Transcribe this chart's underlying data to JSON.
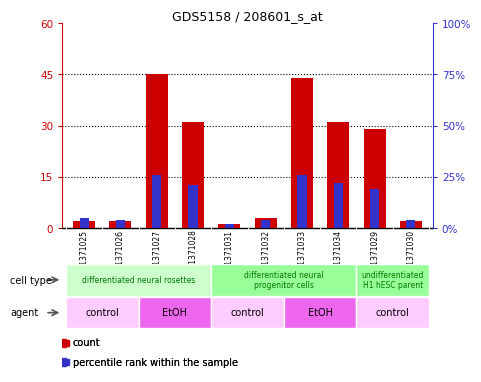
{
  "title": "GDS5158 / 208601_s_at",
  "samples": [
    "GSM1371025",
    "GSM1371026",
    "GSM1371027",
    "GSM1371028",
    "GSM1371031",
    "GSM1371032",
    "GSM1371033",
    "GSM1371034",
    "GSM1371029",
    "GSM1371030"
  ],
  "counts": [
    2,
    2,
    45,
    31,
    1,
    3,
    44,
    31,
    29,
    2
  ],
  "percentile_ranks": [
    5,
    4,
    26,
    21,
    2,
    4,
    26,
    22,
    19,
    4
  ],
  "ylim_left": [
    0,
    60
  ],
  "ylim_right": [
    0,
    100
  ],
  "yticks_left": [
    0,
    15,
    30,
    45,
    60
  ],
  "ytick_labels_left": [
    "0",
    "15",
    "30",
    "45",
    "60"
  ],
  "yticks_right": [
    0,
    25,
    50,
    75,
    100
  ],
  "ytick_labels_right": [
    "0%",
    "25%",
    "50%",
    "75%",
    "100%"
  ],
  "bar_color": "#cc0000",
  "percentile_color": "#3333cc",
  "cell_type_groups": [
    {
      "label": "differentiated neural rosettes",
      "start": 0,
      "end": 4,
      "color": "#ccffcc"
    },
    {
      "label": "differentiated neural\nprogenitor cells",
      "start": 4,
      "end": 8,
      "color": "#99ff99"
    },
    {
      "label": "undifferentiated\nH1 hESC parent",
      "start": 8,
      "end": 10,
      "color": "#99ff99"
    }
  ],
  "agent_groups": [
    {
      "label": "control",
      "start": 0,
      "end": 2,
      "color": "#ffccff"
    },
    {
      "label": "EtOH",
      "start": 2,
      "end": 4,
      "color": "#ee66ee"
    },
    {
      "label": "control",
      "start": 4,
      "end": 6,
      "color": "#ffccff"
    },
    {
      "label": "EtOH",
      "start": 6,
      "end": 8,
      "color": "#ee66ee"
    },
    {
      "label": "control",
      "start": 8,
      "end": 10,
      "color": "#ffccff"
    }
  ],
  "cell_type_label": "cell type",
  "agent_label": "agent",
  "legend_count_label": "count",
  "legend_percentile_label": "percentile rank within the sample",
  "bg_color": "#ffffff",
  "sample_bg_color": "#cccccc"
}
